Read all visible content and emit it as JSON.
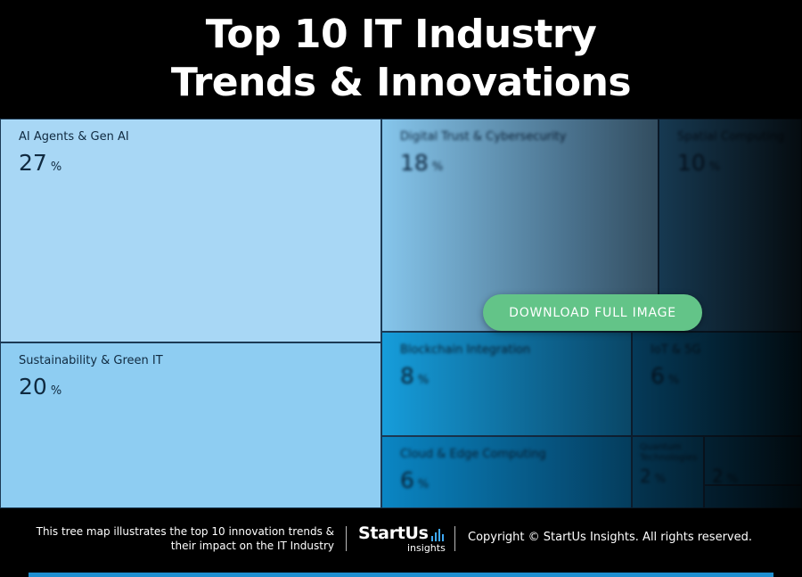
{
  "header": {
    "title_line1": "Top 10 IT Industry",
    "title_line2": "Trends & Innovations"
  },
  "chart_data": {
    "type": "treemap",
    "unit": "%",
    "tiles": [
      {
        "label": "AI Agents & Gen AI",
        "value": 27,
        "color": "#a8d7f5"
      },
      {
        "label": "Sustainability & Green IT",
        "value": 20,
        "color": "#8ecdf2"
      },
      {
        "label": "Digital Trust & Cybersecurity",
        "value": 18,
        "color": "#86c6ec"
      },
      {
        "label": "Spatial Computing",
        "value": 10,
        "color": "#3d93c9"
      },
      {
        "label": "Blockchain Integration",
        "value": 8,
        "color": "#169ddb"
      },
      {
        "label": "IoT & 5G",
        "value": 6,
        "color": "#0c82bf"
      },
      {
        "label": "Cloud & Edge Computing",
        "value": 6,
        "color": "#0a86c4"
      },
      {
        "label": "Quantum Technologies",
        "value": 2,
        "color": "#0b74aa"
      },
      {
        "label": "",
        "value": 2,
        "color": "#0b6fa3"
      },
      {
        "label": "",
        "value": null,
        "color": "#0a6699"
      }
    ]
  },
  "cta": {
    "label": "DOWNLOAD FULL IMAGE",
    "color": "#63c488"
  },
  "footer": {
    "description_line1": "This tree map illustrates the top 10 innovation trends &",
    "description_line2": "their impact on the IT Industry",
    "logo_brand": "StartUs",
    "logo_sub": "insights",
    "copyright": "Copyright © StartUs Insights. All rights reserved."
  }
}
